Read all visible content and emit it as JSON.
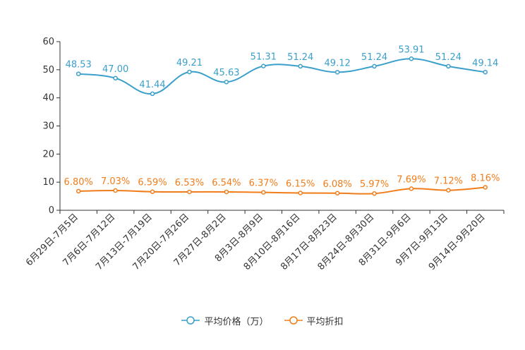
{
  "chart_data": {
    "type": "line",
    "categories": [
      "6月29日-7月5日",
      "7月6日-7月12日",
      "7月13日-7月19日",
      "7月20日-7月26日",
      "7月27日-8月2日",
      "8月3日-8月9日",
      "8月10日-8月16日",
      "8月17日-8月23日",
      "8月24日-8月30日",
      "8月31日-9月6日",
      "9月7日-9月13日",
      "9月14日-9月20日"
    ],
    "ylim": [
      0,
      60
    ],
    "yticks": [
      0,
      10,
      20,
      30,
      40,
      50,
      60
    ],
    "series": [
      {
        "name": "平均价格（万）",
        "color": "#3a9fcb",
        "values": [
          48.53,
          47.0,
          41.44,
          49.21,
          45.63,
          51.31,
          51.24,
          49.12,
          51.24,
          53.91,
          51.24,
          49.14
        ],
        "labels": [
          "48.53",
          "47.00",
          "41.44",
          "49.21",
          "45.63",
          "51.31",
          "51.24",
          "49.12",
          "51.24",
          "53.91",
          "51.24",
          "49.14"
        ]
      },
      {
        "name": "平均折扣",
        "color": "#f07d1a",
        "values": [
          6.8,
          7.03,
          6.59,
          6.53,
          6.54,
          6.37,
          6.15,
          6.08,
          5.97,
          7.69,
          7.12,
          8.16
        ],
        "labels": [
          "6.80%",
          "7.03%",
          "6.59%",
          "6.53%",
          "6.54%",
          "6.37%",
          "6.15%",
          "6.08%",
          "5.97%",
          "7.69%",
          "7.12%",
          "8.16%"
        ]
      }
    ],
    "title": "",
    "xlabel": "",
    "ylabel": "",
    "grid": false,
    "legend_position": "bottom-center"
  }
}
